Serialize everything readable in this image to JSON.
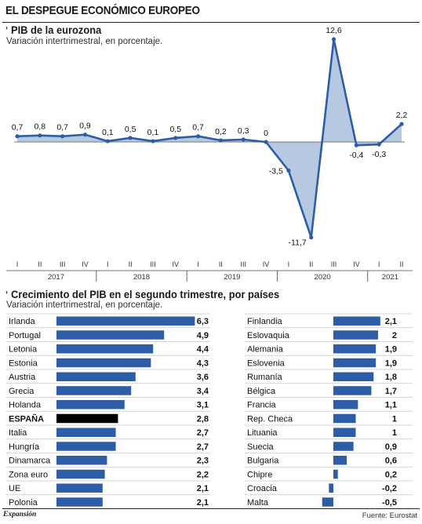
{
  "header": {
    "title": "EL DESPEGUE ECONÓMICO EUROPEO"
  },
  "colors": {
    "line": "#2e5da8",
    "area": "#a9bfdc",
    "bar": "#2e5da8",
    "spain": "#000000"
  },
  "chart_data": [
    {
      "type": "area",
      "title": "PIB de la eurozona",
      "subtitle": "Variación intertrimestral, en porcentaje.",
      "quarters": [
        "I",
        "II",
        "III",
        "IV",
        "I",
        "II",
        "III",
        "IV",
        "I",
        "II",
        "III",
        "IV",
        "I",
        "II",
        "III",
        "IV",
        "I",
        "II"
      ],
      "years": [
        {
          "label": "2017",
          "span": 4
        },
        {
          "label": "2018",
          "span": 4
        },
        {
          "label": "2019",
          "span": 4
        },
        {
          "label": "2020",
          "span": 4
        },
        {
          "label": "2021",
          "span": 2
        }
      ],
      "values": [
        0.7,
        0.8,
        0.7,
        0.9,
        0.1,
        0.5,
        0.1,
        0.5,
        0.7,
        0.2,
        0.3,
        0,
        -3.5,
        -11.7,
        12.6,
        -0.4,
        -0.3,
        2.2
      ],
      "value_labels": [
        "0,7",
        "0,8",
        "0,7",
        "0,9",
        "0,1",
        "0,5",
        "0,1",
        "0,5",
        "0,7",
        "0,2",
        "0,3",
        "0",
        "-3,5",
        "-11,7",
        "12,6",
        "-0,4",
        "-0,3",
        "2,2"
      ]
    },
    {
      "type": "bar",
      "title": "Crecimiento del PIB en el segundo trimestre, por países",
      "subtitle": "Variación intertrimestral, en porcentaje.",
      "highlight": "ESPAÑA",
      "left": [
        {
          "name": "Irlanda",
          "value": 6.3,
          "label": "6,3"
        },
        {
          "name": "Portugal",
          "value": 4.9,
          "label": "4,9"
        },
        {
          "name": "Letonia",
          "value": 4.4,
          "label": "4,4"
        },
        {
          "name": "Estonia",
          "value": 4.3,
          "label": "4,3"
        },
        {
          "name": "Austria",
          "value": 3.6,
          "label": "3,6"
        },
        {
          "name": "Grecia",
          "value": 3.4,
          "label": "3,4"
        },
        {
          "name": "Holanda",
          "value": 3.1,
          "label": "3,1"
        },
        {
          "name": "ESPAÑA",
          "value": 2.8,
          "label": "2,8"
        },
        {
          "name": "Italia",
          "value": 2.7,
          "label": "2,7"
        },
        {
          "name": "Hungría",
          "value": 2.7,
          "label": "2,7"
        },
        {
          "name": "Dinamarca",
          "value": 2.3,
          "label": "2,3"
        },
        {
          "name": "Zona euro",
          "value": 2.2,
          "label": "2,2"
        },
        {
          "name": "UE",
          "value": 2.1,
          "label": "2,1"
        },
        {
          "name": "Polonia",
          "value": 2.1,
          "label": "2,1"
        }
      ],
      "right": [
        {
          "name": "Finlandia",
          "value": 2.1,
          "label": "2,1"
        },
        {
          "name": "Eslovaquia",
          "value": 2,
          "label": "2"
        },
        {
          "name": "Alemania",
          "value": 1.9,
          "label": "1,9"
        },
        {
          "name": "Eslovenia",
          "value": 1.9,
          "label": "1,9"
        },
        {
          "name": "Rumanía",
          "value": 1.8,
          "label": "1,8"
        },
        {
          "name": "Bélgica",
          "value": 1.7,
          "label": "1,7"
        },
        {
          "name": "Francia",
          "value": 1.1,
          "label": "1,1"
        },
        {
          "name": "Rep. Checa",
          "value": 1,
          "label": "1"
        },
        {
          "name": "Lituania",
          "value": 1,
          "label": "1"
        },
        {
          "name": "Suecia",
          "value": 0.9,
          "label": "0,9"
        },
        {
          "name": "Bulgaria",
          "value": 0.6,
          "label": "0,6"
        },
        {
          "name": "Chipre",
          "value": 0.2,
          "label": "0,2"
        },
        {
          "name": "Croacia",
          "value": -0.2,
          "label": "-0,2"
        },
        {
          "name": "Malta",
          "value": -0.5,
          "label": "-0,5"
        }
      ]
    }
  ],
  "footer": {
    "brand": "Expansión",
    "source": "Fuente: Eurostat"
  }
}
